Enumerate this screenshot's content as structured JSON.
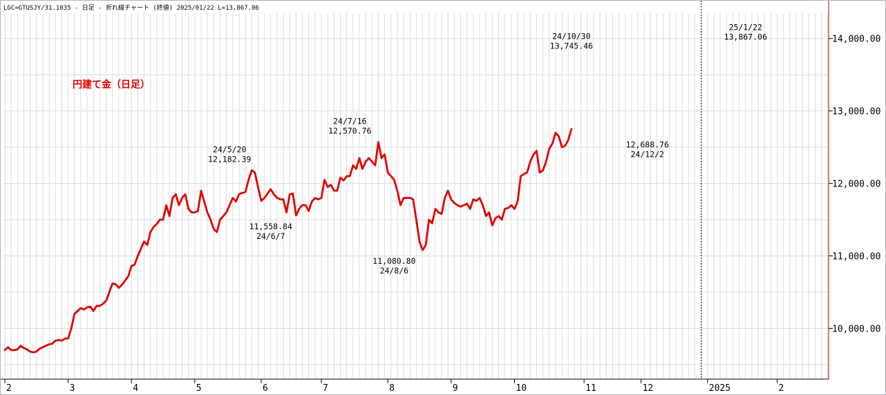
{
  "header": "LGC=GTUSJY/31.1035 - 日足 - 折れ線チャート (終値) 2025/01/22 L=13,867.06",
  "chart_data": {
    "type": "line",
    "title": "円建て金（日足）",
    "ylim": [
      9300,
      14350
    ],
    "grid": true,
    "colors": {
      "line": "#e00000",
      "grid": "#dcdcdc",
      "plot_border": "#c00000",
      "cursor": "#000000"
    },
    "y_ticks": [
      {
        "value": 10000,
        "label": "10,000.00"
      },
      {
        "value": 11000,
        "label": "11,000.00"
      },
      {
        "value": 12000,
        "label": "12,000.00"
      },
      {
        "value": 13000,
        "label": "13,000.00"
      },
      {
        "value": 14000,
        "label": "14,000.00"
      }
    ],
    "x_ticks": [
      {
        "i": 0,
        "label": "2"
      },
      {
        "i": 20,
        "label": "3"
      },
      {
        "i": 40,
        "label": "4"
      },
      {
        "i": 60,
        "label": "5"
      },
      {
        "i": 81,
        "label": "6"
      },
      {
        "i": 100,
        "label": "7"
      },
      {
        "i": 121,
        "label": "8"
      },
      {
        "i": 141,
        "label": "9"
      },
      {
        "i": 161,
        "label": "10"
      },
      {
        "i": 183,
        "label": "11"
      },
      {
        "i": 201,
        "label": "12"
      },
      {
        "i": 222,
        "label": "2025"
      },
      {
        "i": 244,
        "label": "2"
      }
    ],
    "year_boundary_index": 220,
    "annotations": [
      {
        "i": 71,
        "value": 12182.39,
        "date": "24/5/20",
        "value_label": "12,182.39",
        "position": "above"
      },
      {
        "i": 84,
        "value": 11558.84,
        "date": "24/6/7",
        "value_label": "11,558.84",
        "position": "below"
      },
      {
        "i": 109,
        "value": 12570.76,
        "date": "24/7/16",
        "value_label": "12,570.76",
        "position": "above"
      },
      {
        "i": 123,
        "value": 11080.8,
        "date": "24/8/6",
        "value_label": "11,080.80",
        "position": "below"
      },
      {
        "i": 179,
        "value": 13745.46,
        "date": "24/10/30",
        "value_label": "13,745.46",
        "position": "above"
      },
      {
        "i": 203,
        "value": 12688.76,
        "date": "24/12/2",
        "value_label": "12,688.76",
        "position": "below"
      },
      {
        "i": 234,
        "value": 13867.06,
        "date": "25/1/22",
        "value_label": "13,867.06",
        "position": "above"
      }
    ],
    "series": [
      {
        "values": [
          9700,
          9740,
          9700,
          9700,
          9710,
          9760,
          9730,
          9710,
          9680,
          9670,
          9680,
          9720,
          9740,
          9760,
          9780,
          9790,
          9830,
          9840,
          9830,
          9860,
          9860,
          10000,
          10200,
          10240,
          10280,
          10260,
          10290,
          10300,
          10240,
          10310,
          10310,
          10340,
          10380,
          10500,
          10620,
          10610,
          10560,
          10600,
          10660,
          10720,
          10860,
          10880,
          11000,
          11100,
          11200,
          11150,
          11330,
          11400,
          11440,
          11500,
          11500,
          11700,
          11550,
          11800,
          11850,
          11700,
          11800,
          11850,
          11650,
          11600,
          11600,
          11620,
          11900,
          11750,
          11600,
          11500,
          11370,
          11330,
          11500,
          11550,
          11600,
          11700,
          11800,
          11750,
          11850,
          11870,
          11880,
          12050,
          12182.39,
          12150,
          11950,
          11760,
          11800,
          11860,
          11920,
          11850,
          11800,
          11780,
          11780,
          11600,
          11850,
          11860,
          11558.84,
          11650,
          11700,
          11700,
          11620,
          11750,
          11800,
          11780,
          11800,
          12050,
          11950,
          11980,
          11900,
          11900,
          12080,
          12040,
          12100,
          12100,
          12250,
          12200,
          12350,
          12200,
          12300,
          12350,
          12300,
          12250,
          12570.76,
          12350,
          12400,
          12150,
          12100,
          12050,
          11900,
          11700,
          11800,
          11800,
          11800,
          11780,
          11500,
          11200,
          11080.8,
          11150,
          11500,
          11450,
          11650,
          11600,
          11580,
          11800,
          11900,
          11780,
          11730,
          11700,
          11680,
          11700,
          11720,
          11650,
          11780,
          11760,
          11800,
          11700,
          11550,
          11600,
          11420,
          11520,
          11550,
          11500,
          11650,
          11660,
          11700,
          11650,
          11750,
          12100,
          12130,
          12150,
          12300,
          12400,
          12450,
          12150,
          12180,
          12300,
          12480,
          12550,
          12700,
          12650,
          12500,
          12520,
          12600,
          12750
        ]
      }
    ]
  }
}
